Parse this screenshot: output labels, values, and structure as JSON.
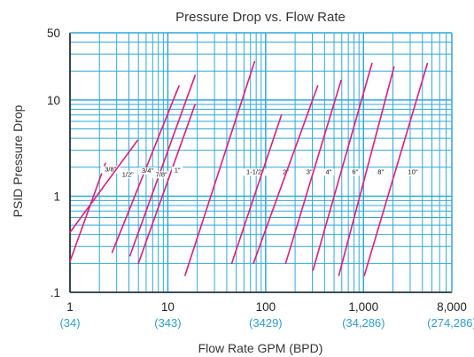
{
  "chart_data": {
    "type": "line",
    "title": "Pressure Drop vs. Flow Rate",
    "xlabel": "Flow Rate GPM (BPD)",
    "ylabel": "PSID Pressure Drop",
    "xscale": "log",
    "yscale": "log",
    "xlim": [
      1,
      8000
    ],
    "ylim": [
      0.1,
      50
    ],
    "grid": true,
    "x_ticks": [
      {
        "value": 1,
        "label": "1",
        "bpd": "(34)"
      },
      {
        "value": 10,
        "label": "10",
        "bpd": "(343)"
      },
      {
        "value": 100,
        "label": "100",
        "bpd": "(3429)"
      },
      {
        "value": 1000,
        "label": "1,000",
        "bpd": "(34,286)"
      },
      {
        "value": 8000,
        "label": "8,000",
        "bpd": "(274,286)"
      }
    ],
    "y_ticks": [
      {
        "value": 50,
        "label": "50"
      },
      {
        "value": 10,
        "label": "10"
      },
      {
        "value": 1,
        "label": "1"
      },
      {
        "value": 0.1,
        "label": ".1"
      }
    ],
    "line_color": "#e5197e",
    "grid_color": "#2ea9de",
    "series": [
      {
        "name": "3/8\"",
        "points": [
          [
            1,
            0.21
          ],
          [
            2.3,
            2.2
          ]
        ],
        "label_at": [
          2.6,
          1.8
        ]
      },
      {
        "name": "1/2\"",
        "points": [
          [
            1,
            0.42
          ],
          [
            4.9,
            3.8
          ]
        ],
        "label_at": [
          3.9,
          1.6
        ]
      },
      {
        "name": "3/4\"",
        "points": [
          [
            2.7,
            0.26
          ],
          [
            13,
            14
          ]
        ],
        "label_at": [
          6.2,
          1.75
        ]
      },
      {
        "name": "7/8\"",
        "points": [
          [
            4.1,
            0.24
          ],
          [
            19,
            18
          ]
        ],
        "label_at": [
          8.6,
          1.6
        ]
      },
      {
        "name": "1\"",
        "points": [
          [
            5,
            0.2
          ],
          [
            19,
            9
          ]
        ],
        "label_at": [
          12.5,
          1.78
        ]
      },
      {
        "name": "1-1/2\"",
        "points": [
          [
            15,
            0.15
          ],
          [
            77,
            25
          ]
        ],
        "label_at": [
          78,
          1.7
        ]
      },
      {
        "name": "2\"",
        "points": [
          [
            45,
            0.2
          ],
          [
            145,
            7
          ]
        ],
        "label_at": [
          160,
          1.7
        ]
      },
      {
        "name": "3\"",
        "points": [
          [
            75,
            0.2
          ],
          [
            340,
            14
          ]
        ],
        "label_at": [
          280,
          1.7
        ]
      },
      {
        "name": "4\"",
        "points": [
          [
            160,
            0.2
          ],
          [
            590,
            16
          ]
        ],
        "label_at": [
          440,
          1.7
        ]
      },
      {
        "name": "6\"",
        "points": [
          [
            305,
            0.17
          ],
          [
            1220,
            24
          ]
        ],
        "label_at": [
          820,
          1.7
        ]
      },
      {
        "name": "8\"",
        "points": [
          [
            560,
            0.15
          ],
          [
            2050,
            22
          ]
        ],
        "label_at": [
          1500,
          1.7
        ]
      },
      {
        "name": "10\"",
        "points": [
          [
            1020,
            0.15
          ],
          [
            4500,
            24
          ]
        ],
        "label_at": [
          3200,
          1.7
        ]
      }
    ]
  }
}
